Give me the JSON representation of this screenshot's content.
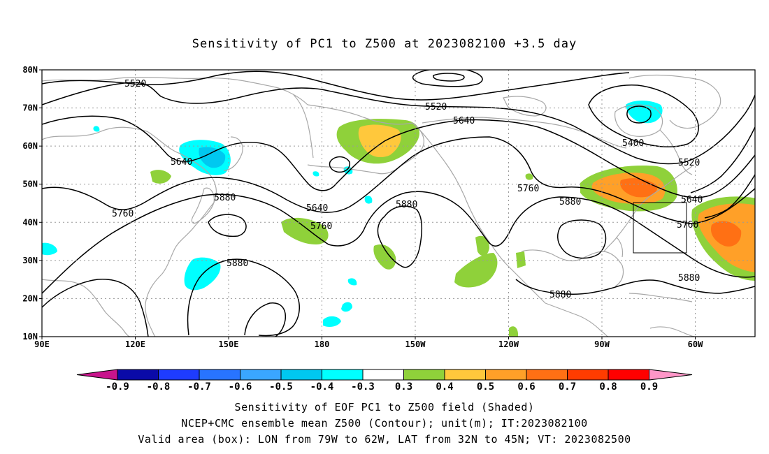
{
  "title": "Sensitivity of PC1 to Z500 at 2023082100 +3.5 day",
  "map": {
    "lat_ticks": [
      "80N",
      "70N",
      "60N",
      "50N",
      "40N",
      "30N",
      "20N",
      "10N"
    ],
    "lon_ticks": [
      "90E",
      "120E",
      "150E",
      "180",
      "150W",
      "120W",
      "90W",
      "60W"
    ],
    "lat_range": [
      10,
      80
    ],
    "lon_range_deg_east": [
      90,
      322
    ],
    "valid_box": {
      "lon_w": 79,
      "lon_e": 62,
      "lat_s": 32,
      "lat_n": 45
    }
  },
  "contour_labels": [
    {
      "text": "5520"
    },
    {
      "text": "5520"
    },
    {
      "text": "5520"
    },
    {
      "text": "5400"
    },
    {
      "text": "5640"
    },
    {
      "text": "5640"
    },
    {
      "text": "5640"
    },
    {
      "text": "5640"
    },
    {
      "text": "5760"
    },
    {
      "text": "5760"
    },
    {
      "text": "5760"
    },
    {
      "text": "5760"
    },
    {
      "text": "5880"
    },
    {
      "text": "5880"
    },
    {
      "text": "5880"
    },
    {
      "text": "5880"
    },
    {
      "text": "5880"
    },
    {
      "text": "5880"
    }
  ],
  "colorbar": {
    "ticks": [
      "-0.9",
      "-0.8",
      "-0.7",
      "-0.6",
      "-0.5",
      "-0.4",
      "-0.3",
      "0.3",
      "0.4",
      "0.5",
      "0.6",
      "0.7",
      "0.8",
      "0.9"
    ],
    "colors": [
      "#0a0aa8",
      "#1e3cff",
      "#2874ff",
      "#3aa6ff",
      "#00c8f0",
      "#00ffff",
      "#ffffff",
      "#8fd13a",
      "#ffc83c",
      "#ffa028",
      "#ff7014",
      "#ff3c00",
      "#ff0000"
    ],
    "left_tri_color": "#c8148c",
    "right_tri_color": "#ff96c8"
  },
  "captions": [
    "Sensitivity of EOF PC1 to Z500 field (Shaded)",
    "NCEP+CMC ensemble mean Z500 (Contour); unit(m); IT:2023082100",
    "Valid area (box): LON from 79W to 62W, LAT from 32N to 45N; VT: 2023082500"
  ]
}
